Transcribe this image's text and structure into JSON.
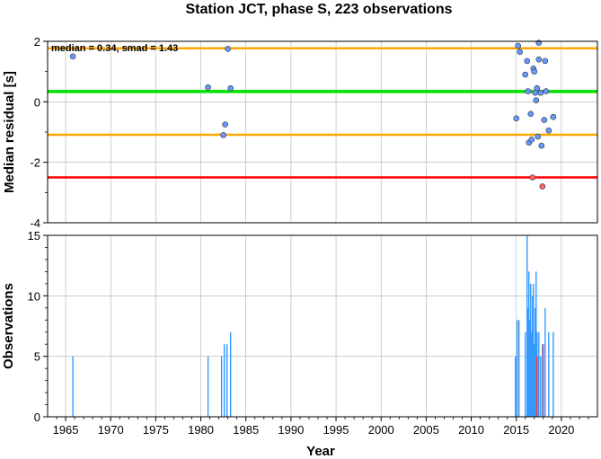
{
  "chart_data": [
    {
      "type": "scatter",
      "title": "Station JCT, phase S, 223 observations",
      "ylabel": "Median residual [s]",
      "annotation": "median = 0.34, smad = 1.43",
      "xlim": [
        1963,
        2024
      ],
      "ylim": [
        -4,
        2
      ],
      "yticks": [
        2,
        0,
        -2,
        -4
      ],
      "grid": true,
      "reference_lines": [
        {
          "name": "median",
          "value": 0.34,
          "color": "#00e000"
        },
        {
          "name": "upper",
          "value": 1.77,
          "color": "#ffa500"
        },
        {
          "name": "lower",
          "value": -1.09,
          "color": "#ffa500"
        },
        {
          "name": "reject",
          "value": -2.5,
          "color": "#ff0000"
        }
      ],
      "series": [
        {
          "color": "#6699ff",
          "points": [
            {
              "x": 1965.8,
              "y": 1.5
            },
            {
              "x": 1980.8,
              "y": 0.48
            },
            {
              "x": 1982.5,
              "y": -1.1
            },
            {
              "x": 1982.7,
              "y": -0.75
            },
            {
              "x": 1983.0,
              "y": 1.75
            },
            {
              "x": 1983.3,
              "y": 0.45
            },
            {
              "x": 2015.0,
              "y": -0.55
            },
            {
              "x": 2015.2,
              "y": 1.85
            },
            {
              "x": 2015.4,
              "y": 1.65
            },
            {
              "x": 2016.0,
              "y": 0.9
            },
            {
              "x": 2016.2,
              "y": 1.35
            },
            {
              "x": 2016.3,
              "y": 0.35
            },
            {
              "x": 2016.4,
              "y": -1.35
            },
            {
              "x": 2016.6,
              "y": -0.4
            },
            {
              "x": 2016.7,
              "y": -1.25
            },
            {
              "x": 2016.9,
              "y": 1.1
            },
            {
              "x": 2017.0,
              "y": 1.0
            },
            {
              "x": 2017.1,
              "y": 0.3
            },
            {
              "x": 2017.2,
              "y": 0.05
            },
            {
              "x": 2017.3,
              "y": 0.45
            },
            {
              "x": 2017.4,
              "y": -1.15
            },
            {
              "x": 2017.5,
              "y": 1.4
            },
            {
              "x": 2017.5,
              "y": 1.95
            },
            {
              "x": 2017.7,
              "y": 0.3
            },
            {
              "x": 2017.8,
              "y": -1.45
            },
            {
              "x": 2018.1,
              "y": -0.6
            },
            {
              "x": 2018.2,
              "y": 1.35
            },
            {
              "x": 2018.3,
              "y": 0.35
            },
            {
              "x": 2018.6,
              "y": -0.95
            },
            {
              "x": 2019.1,
              "y": -0.5
            }
          ]
        },
        {
          "color": "#ff6666",
          "points": [
            {
              "x": 2016.8,
              "y": -2.5
            },
            {
              "x": 2017.9,
              "y": -2.8
            }
          ]
        }
      ]
    },
    {
      "type": "bar",
      "ylabel": "Observations",
      "xlabel": "Year",
      "xlim": [
        1963,
        2024
      ],
      "ylim": [
        0,
        15
      ],
      "yticks": [
        15,
        10,
        5,
        0
      ],
      "xticks": [
        "1965",
        "1970",
        "1975",
        "1980",
        "1985",
        "1990",
        "1995",
        "2000",
        "2005",
        "2010",
        "2015",
        "2020"
      ],
      "grid": true,
      "series": [
        {
          "color": "#3399ff",
          "bars": [
            {
              "x": 1965.8,
              "y": 5
            },
            {
              "x": 1980.8,
              "y": 5
            },
            {
              "x": 1982.3,
              "y": 5
            },
            {
              "x": 1982.6,
              "y": 6
            },
            {
              "x": 1982.9,
              "y": 6
            },
            {
              "x": 1983.3,
              "y": 7
            },
            {
              "x": 2014.9,
              "y": 5
            },
            {
              "x": 2015.1,
              "y": 8
            },
            {
              "x": 2015.3,
              "y": 8
            },
            {
              "x": 2016.0,
              "y": 7
            },
            {
              "x": 2016.2,
              "y": 15
            },
            {
              "x": 2016.3,
              "y": 9
            },
            {
              "x": 2016.4,
              "y": 12
            },
            {
              "x": 2016.5,
              "y": 8
            },
            {
              "x": 2016.6,
              "y": 11
            },
            {
              "x": 2016.7,
              "y": 7
            },
            {
              "x": 2016.8,
              "y": 10
            },
            {
              "x": 2016.9,
              "y": 11
            },
            {
              "x": 2017.0,
              "y": 6
            },
            {
              "x": 2017.1,
              "y": 9
            },
            {
              "x": 2017.2,
              "y": 12
            },
            {
              "x": 2017.3,
              "y": 7
            },
            {
              "x": 2017.4,
              "y": 5
            },
            {
              "x": 2017.5,
              "y": 7
            },
            {
              "x": 2017.7,
              "y": 5
            },
            {
              "x": 2017.9,
              "y": 6
            },
            {
              "x": 2018.2,
              "y": 9
            },
            {
              "x": 2018.6,
              "y": 7
            },
            {
              "x": 2019.1,
              "y": 7
            }
          ]
        },
        {
          "color": "#ff4444",
          "bars": [
            {
              "x": 2017.25,
              "y": 5
            },
            {
              "x": 2018.0,
              "y": 6
            }
          ]
        }
      ]
    }
  ]
}
